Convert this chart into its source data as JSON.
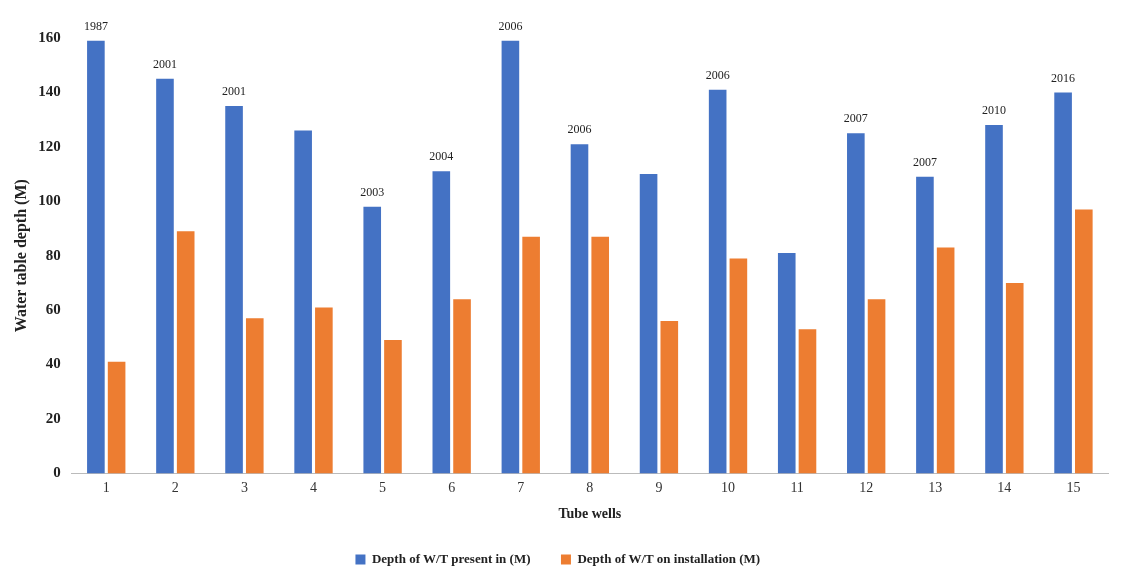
{
  "chart_data": {
    "type": "bar",
    "xlabel": "Tube wells",
    "ylabel": "Water table depth (M)",
    "categories": [
      "1",
      "2",
      "3",
      "4",
      "5",
      "6",
      "7",
      "8",
      "9",
      "10",
      "11",
      "12",
      "13",
      "14",
      "15"
    ],
    "series": [
      {
        "name": "Depth of W/T present in (M)",
        "color": "#4472c4",
        "values": [
          159,
          145,
          135,
          126,
          98,
          111,
          159,
          121,
          110,
          141,
          81,
          125,
          109,
          128,
          140
        ]
      },
      {
        "name": "Depth of W/T on installation (M)",
        "color": "#ed7d31",
        "values": [
          41,
          89,
          57,
          61,
          49,
          64,
          87,
          87,
          56,
          79,
          53,
          64,
          83,
          70,
          97
        ]
      }
    ],
    "ylim": [
      0,
      160
    ],
    "yticks": [
      0,
      20,
      40,
      60,
      80,
      100,
      120,
      140,
      160
    ],
    "grid": false,
    "legend": "bottom",
    "annotations": [
      {
        "text": "1987",
        "x": "1",
        "y": 159
      },
      {
        "text": "2001",
        "x": "2",
        "y": 145
      },
      {
        "text": "2001",
        "x": "3",
        "y": 135
      },
      {
        "text": "2003",
        "x": "5",
        "y": 98
      },
      {
        "text": "2004",
        "x": "6",
        "y": 111
      },
      {
        "text": "2006",
        "x": "7",
        "y": 159
      },
      {
        "text": "2006",
        "x": "8",
        "y": 121
      },
      {
        "text": "2006",
        "x": "10",
        "y": 141
      },
      {
        "text": "2007",
        "x": "12",
        "y": 125
      },
      {
        "text": "2007",
        "x": "13",
        "y": 109
      },
      {
        "text": "2010",
        "x": "14",
        "y": 128
      },
      {
        "text": "2016",
        "x": "15",
        "y": 140
      }
    ]
  }
}
